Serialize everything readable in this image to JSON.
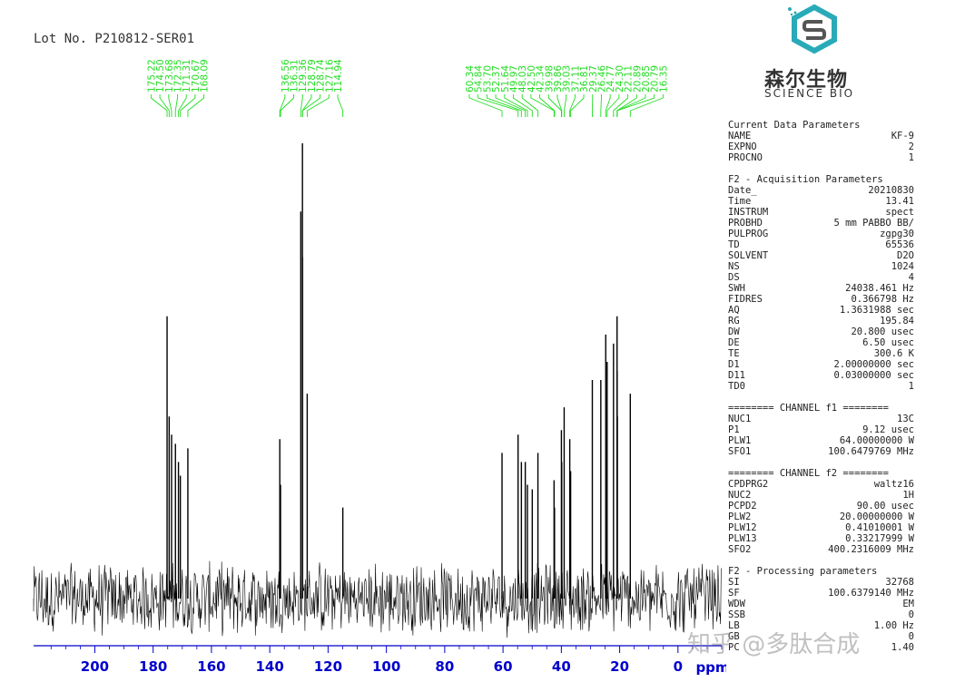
{
  "lot_label": "Lot No. P210812-SER01",
  "logo": {
    "cn": "森尔生物",
    "en": "SCIENCE BIO",
    "icon": "hexagon-s-logo-icon",
    "color": "#2aaab8"
  },
  "watermark": "知乎 @多肽合成",
  "colors": {
    "peak_labels": "#22dd22",
    "spectrum": "#000000",
    "axis": "#0000cc"
  },
  "params": {
    "sections": [
      {
        "title": "Current Data Parameters",
        "rows": [
          [
            "NAME",
            "KF-9"
          ],
          [
            "EXPNO",
            "2"
          ],
          [
            "PROCNO",
            "1"
          ]
        ]
      },
      {
        "title": "F2 - Acquisition Parameters",
        "rows": [
          [
            "Date_",
            "20210830"
          ],
          [
            "Time",
            "13.41"
          ],
          [
            "INSTRUM",
            "spect"
          ],
          [
            "PROBHD",
            "5 mm PABBO BB/"
          ],
          [
            "PULPROG",
            "zgpg30"
          ],
          [
            "TD",
            "65536"
          ],
          [
            "SOLVENT",
            "D2O"
          ],
          [
            "NS",
            "1024"
          ],
          [
            "DS",
            "4"
          ],
          [
            "SWH",
            "24038.461 Hz"
          ],
          [
            "FIDRES",
            "0.366798 Hz"
          ],
          [
            "AQ",
            "1.3631988 sec"
          ],
          [
            "RG",
            "195.84"
          ],
          [
            "DW",
            "20.800 usec"
          ],
          [
            "DE",
            "6.50 usec"
          ],
          [
            "TE",
            "300.6 K"
          ],
          [
            "D1",
            "2.00000000 sec"
          ],
          [
            "D11",
            "0.03000000 sec"
          ],
          [
            "TD0",
            "1"
          ]
        ]
      },
      {
        "title": "======== CHANNEL f1 ========",
        "rows": [
          [
            "NUC1",
            "13C"
          ],
          [
            "P1",
            "9.12 usec"
          ],
          [
            "PLW1",
            "64.00000000 W"
          ],
          [
            "SFO1",
            "100.6479769 MHz"
          ]
        ]
      },
      {
        "title": "======== CHANNEL f2 ========",
        "rows": [
          [
            "CPDPRG2",
            "waltz16"
          ],
          [
            "NUC2",
            "1H"
          ],
          [
            "PCPD2",
            "90.00 usec"
          ],
          [
            "PLW2",
            "20.00000000 W"
          ],
          [
            "PLW12",
            "0.41010001 W"
          ],
          [
            "PLW13",
            "0.33217999 W"
          ],
          [
            "SFO2",
            "400.2316009 MHz"
          ]
        ]
      },
      {
        "title": "F2 - Processing parameters",
        "rows": [
          [
            "SI",
            "32768"
          ],
          [
            "SF",
            "100.6379140 MHz"
          ],
          [
            "WDW",
            "EM"
          ],
          [
            "SSB",
            "0"
          ],
          [
            "LB",
            "1.00 Hz"
          ],
          [
            "GB",
            "0"
          ],
          [
            "PC",
            "1.40"
          ]
        ]
      }
    ]
  },
  "chart_data": {
    "type": "line",
    "title": "",
    "xlabel": "ppm",
    "xlim": [
      221,
      -15
    ],
    "x_ticks": [
      200,
      180,
      160,
      140,
      120,
      100,
      80,
      60,
      40,
      20,
      0
    ],
    "peak_label_groups": [
      [
        "175.22",
        "174.50",
        "173.68",
        "172.35",
        "171.31",
        "170.67",
        "168.09"
      ],
      [
        "136.56",
        "136.31",
        "129.36",
        "128.79",
        "128.74",
        "127.16",
        "114.94"
      ],
      [
        "60.34",
        "54.84",
        "53.70",
        "52.37",
        "51.64",
        "49.97",
        "48.03",
        "42.50",
        "42.34",
        "39.98",
        "39.86",
        "39.03",
        "37.11",
        "36.81",
        "29.37",
        "26.46",
        "24.77",
        "24.30",
        "22.11",
        "20.89",
        "20.85",
        "20.79",
        "16.35"
      ]
    ],
    "peaks": [
      {
        "ppm": 175.22,
        "h": 0.62
      },
      {
        "ppm": 174.5,
        "h": 0.4
      },
      {
        "ppm": 173.68,
        "h": 0.36
      },
      {
        "ppm": 172.35,
        "h": 0.34
      },
      {
        "ppm": 171.31,
        "h": 0.3
      },
      {
        "ppm": 170.67,
        "h": 0.27
      },
      {
        "ppm": 168.09,
        "h": 0.33
      },
      {
        "ppm": 136.56,
        "h": 0.35
      },
      {
        "ppm": 136.31,
        "h": 0.25
      },
      {
        "ppm": 129.36,
        "h": 0.85
      },
      {
        "ppm": 128.79,
        "h": 1.0
      },
      {
        "ppm": 128.74,
        "h": 0.75
      },
      {
        "ppm": 127.16,
        "h": 0.45
      },
      {
        "ppm": 114.94,
        "h": 0.2
      },
      {
        "ppm": 60.34,
        "h": 0.32
      },
      {
        "ppm": 54.84,
        "h": 0.36
      },
      {
        "ppm": 53.7,
        "h": 0.3
      },
      {
        "ppm": 52.37,
        "h": 0.3
      },
      {
        "ppm": 51.64,
        "h": 0.25
      },
      {
        "ppm": 49.97,
        "h": 0.24
      },
      {
        "ppm": 48.03,
        "h": 0.32
      },
      {
        "ppm": 42.5,
        "h": 0.26
      },
      {
        "ppm": 42.34,
        "h": 0.2
      },
      {
        "ppm": 39.98,
        "h": 0.37
      },
      {
        "ppm": 39.86,
        "h": 0.3
      },
      {
        "ppm": 39.03,
        "h": 0.42
      },
      {
        "ppm": 37.11,
        "h": 0.35
      },
      {
        "ppm": 36.81,
        "h": 0.28
      },
      {
        "ppm": 29.37,
        "h": 0.48
      },
      {
        "ppm": 26.46,
        "h": 0.48
      },
      {
        "ppm": 24.77,
        "h": 0.58
      },
      {
        "ppm": 24.3,
        "h": 0.52
      },
      {
        "ppm": 22.11,
        "h": 0.56
      },
      {
        "ppm": 20.89,
        "h": 0.62
      },
      {
        "ppm": 20.85,
        "h": 0.5
      },
      {
        "ppm": 20.79,
        "h": 0.4
      },
      {
        "ppm": 16.35,
        "h": 0.45
      }
    ]
  }
}
